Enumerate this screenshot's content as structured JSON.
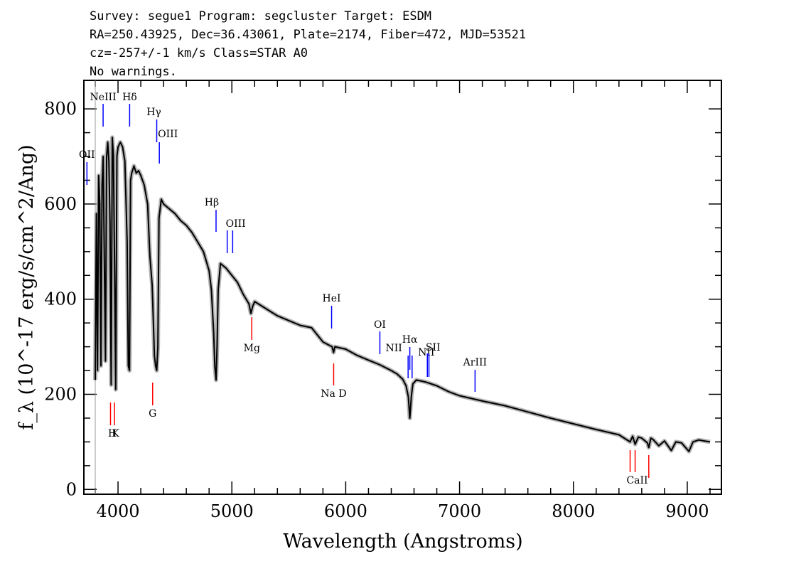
{
  "header": {
    "line1": "Survey: segue1 Program: segcluster Target: ESDM",
    "line2": "RA=250.43925, Dec=36.43061, Plate=2174, Fiber=472, MJD=53521",
    "line3": "cz=-257+/-1 km/s Class=STAR A0",
    "line4": "No warnings."
  },
  "chart_data": {
    "type": "line",
    "xlabel": "Wavelength (Angstroms)",
    "ylabel": "f_λ (10^-17 erg/s/cm^2/Ang)",
    "xlim": [
      3700,
      9300
    ],
    "ylim": [
      -10,
      860
    ],
    "x_ticks": [
      4000,
      5000,
      6000,
      7000,
      8000,
      9000
    ],
    "y_ticks": [
      0,
      200,
      400,
      600,
      800
    ],
    "series": [
      {
        "style": "black line with grey error band",
        "x": [
          3800,
          3810,
          3820,
          3830,
          3840,
          3850,
          3860,
          3870,
          3880,
          3890,
          3900,
          3910,
          3920,
          3930,
          3940,
          3950,
          3960,
          3970,
          3980,
          3990,
          4000,
          4020,
          4040,
          4060,
          4080,
          4090,
          4101,
          4110,
          4120,
          4140,
          4160,
          4180,
          4200,
          4230,
          4260,
          4280,
          4300,
          4320,
          4330,
          4340,
          4350,
          4360,
          4380,
          4400,
          4450,
          4500,
          4550,
          4600,
          4650,
          4700,
          4750,
          4800,
          4820,
          4840,
          4850,
          4861,
          4870,
          4880,
          4900,
          4950,
          5000,
          5050,
          5100,
          5150,
          5167,
          5183,
          5200,
          5300,
          5400,
          5500,
          5600,
          5700,
          5800,
          5880,
          5893,
          5905,
          6000,
          6100,
          6200,
          6300,
          6400,
          6450,
          6500,
          6530,
          6550,
          6563,
          6576,
          6590,
          6620,
          6700,
          6800,
          6900,
          7000,
          7200,
          7400,
          7600,
          7800,
          8000,
          8200,
          8400,
          8498,
          8520,
          8542,
          8570,
          8600,
          8650,
          8662,
          8680,
          8700,
          8750,
          8800,
          8860,
          8900,
          8950,
          9015,
          9050,
          9100,
          9150,
          9200
        ],
        "y": [
          230,
          580,
          250,
          660,
          600,
          260,
          640,
          700,
          480,
          270,
          700,
          730,
          690,
          560,
          220,
          740,
          700,
          470,
          210,
          700,
          720,
          730,
          720,
          690,
          520,
          260,
          250,
          650,
          665,
          680,
          665,
          670,
          660,
          640,
          600,
          490,
          430,
          280,
          260,
          250,
          300,
          570,
          610,
          600,
          590,
          580,
          565,
          555,
          540,
          520,
          500,
          460,
          420,
          330,
          260,
          230,
          300,
          420,
          475,
          465,
          450,
          435,
          410,
          390,
          370,
          385,
          395,
          380,
          365,
          355,
          345,
          340,
          310,
          300,
          288,
          300,
          295,
          282,
          272,
          262,
          250,
          243,
          232,
          218,
          195,
          150,
          195,
          222,
          230,
          226,
          218,
          206,
          197,
          186,
          176,
          163,
          150,
          138,
          126,
          115,
          100,
          112,
          95,
          110,
          108,
          98,
          88,
          108,
          105,
          92,
          102,
          82,
          100,
          98,
          80,
          100,
          104,
          102,
          100
        ]
      }
    ],
    "emission_lines": [
      {
        "label": "OII",
        "x": 3727
      },
      {
        "label": "NeIII",
        "x": 3869
      },
      {
        "label": "Hδ",
        "x": 4102
      },
      {
        "label": "Hγ",
        "x": 4340
      },
      {
        "label": "OIII",
        "x": 4363
      },
      {
        "label": "Hβ",
        "x": 4861
      },
      {
        "label": "OIII",
        "x": 4959
      },
      {
        "label": "OIII",
        "x": 5007
      },
      {
        "label": "HeI",
        "x": 5876
      },
      {
        "label": "OI",
        "x": 6300
      },
      {
        "label": "NII",
        "x": 6548
      },
      {
        "label": "Hα",
        "x": 6563
      },
      {
        "label": "NII",
        "x": 6583
      },
      {
        "label": "SII",
        "x": 6717
      },
      {
        "label": "SII",
        "x": 6731
      },
      {
        "label": "ArIII",
        "x": 7136
      }
    ],
    "absorption_lines": [
      {
        "label": "K",
        "x": 3934
      },
      {
        "label": "H",
        "x": 3969
      },
      {
        "label": "G",
        "x": 4304
      },
      {
        "label": "Mg",
        "x": 5175
      },
      {
        "label": "Na D",
        "x": 5894
      },
      {
        "label": "CaII",
        "x": 8498
      },
      {
        "label": "CaII",
        "x": 8542
      },
      {
        "label": "CaII",
        "x": 8662
      }
    ],
    "colors": {
      "spectrum": "#000000",
      "error_band": "#b4b4b4",
      "emission": "#0000ff",
      "absorption": "#ff0000"
    }
  }
}
